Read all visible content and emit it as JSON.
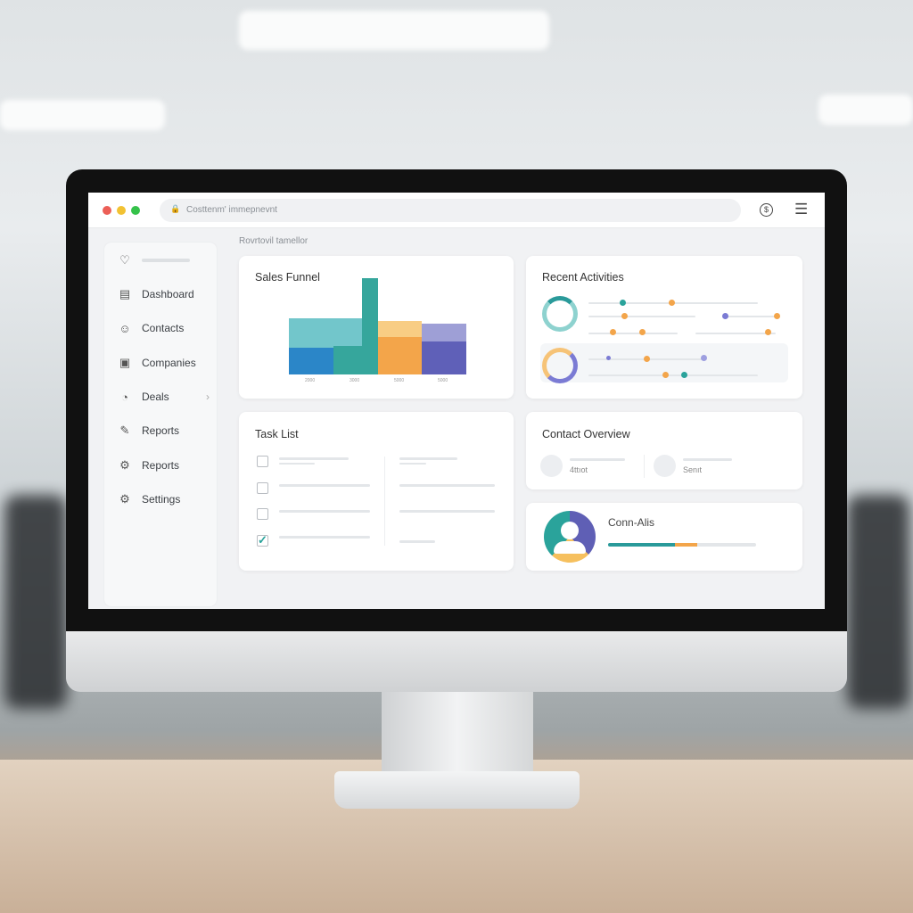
{
  "browser": {
    "address": "Costtenm' immepnevnt",
    "icons": [
      "lock-icon",
      "dollar-icon",
      "menu-icon"
    ]
  },
  "breadcrumb": "Rovrtovil tamellor",
  "sidebar": {
    "items": [
      {
        "label": "",
        "icon": "logo-icon"
      },
      {
        "label": "Dashboard",
        "icon": "dashboard-icon"
      },
      {
        "label": "Contacts",
        "icon": "user-icon"
      },
      {
        "label": "Companies",
        "icon": "briefcase-icon"
      },
      {
        "label": "Deals",
        "icon": "deals-icon",
        "chevron": true
      },
      {
        "label": "Reports",
        "icon": "report-icon"
      },
      {
        "label": "Reports",
        "icon": "gear-icon"
      },
      {
        "label": "Settings",
        "icon": "settings-icon"
      }
    ]
  },
  "sales_funnel": {
    "title": "Sales Funnel",
    "labels": [
      "2000",
      "3000",
      "5000",
      "5000"
    ],
    "colors": [
      "#2b86c8",
      "#36a69c",
      "#f3a54a",
      "#5f60b8"
    ]
  },
  "recent_activities": {
    "title": "Recent Activities"
  },
  "task_list": {
    "title": "Task List",
    "tasks": [
      {
        "checked": false
      },
      {
        "checked": false
      },
      {
        "checked": false
      },
      {
        "checked": true
      }
    ]
  },
  "contact_overview": {
    "title": "Contact Overview",
    "stats": [
      "4ttıot",
      "Senıt"
    ]
  },
  "contact_card": {
    "title": "Conn-Alis",
    "progress": {
      "teal": 45,
      "orange": 15
    }
  }
}
